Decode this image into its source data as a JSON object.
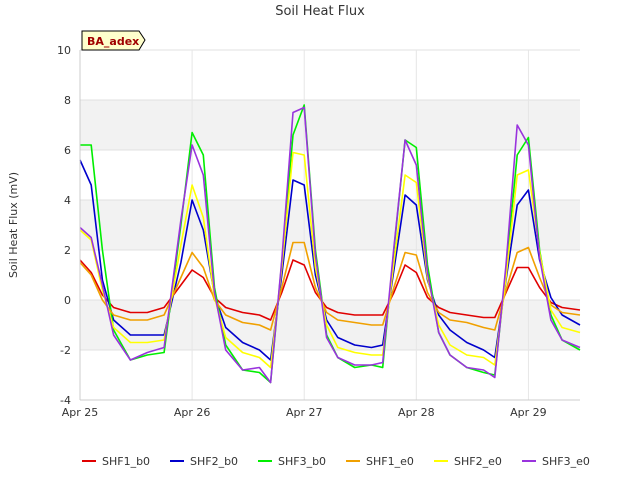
{
  "chart_data": {
    "type": "line",
    "title": "Soil Heat Flux",
    "xlabel": "",
    "ylabel": "Soil Heat Flux (mV)",
    "badge": "BA_adex",
    "ylim": [
      -4,
      10
    ],
    "yticks": [
      -4,
      -2,
      0,
      2,
      4,
      6,
      8,
      10
    ],
    "xlim": [
      0,
      4.46
    ],
    "xticks": [
      {
        "value": 0,
        "label": "Apr 25"
      },
      {
        "value": 1,
        "label": "Apr 26"
      },
      {
        "value": 2,
        "label": "Apr 27"
      },
      {
        "value": 3,
        "label": "Apr 28"
      },
      {
        "value": 4,
        "label": "Apr 29"
      }
    ],
    "grid": "horizontal bands",
    "legend_position": "bottom",
    "x": [
      0.0,
      0.1,
      0.2,
      0.3,
      0.45,
      0.6,
      0.75,
      0.9,
      1.0,
      1.1,
      1.2,
      1.3,
      1.45,
      1.6,
      1.7,
      1.8,
      1.9,
      2.0,
      2.1,
      2.2,
      2.3,
      2.45,
      2.6,
      2.7,
      2.8,
      2.9,
      3.0,
      3.1,
      3.2,
      3.3,
      3.45,
      3.6,
      3.7,
      3.8,
      3.9,
      4.0,
      4.1,
      4.2,
      4.3,
      4.46
    ],
    "series": [
      {
        "name": "SHF1_b0",
        "color": "#e00000",
        "values": [
          1.6,
          1.1,
          0.2,
          -0.3,
          -0.5,
          -0.5,
          -0.3,
          0.6,
          1.2,
          0.9,
          0.1,
          -0.3,
          -0.5,
          -0.6,
          -0.8,
          0.3,
          1.6,
          1.4,
          0.3,
          -0.3,
          -0.5,
          -0.6,
          -0.6,
          -0.6,
          0.3,
          1.4,
          1.1,
          0.1,
          -0.3,
          -0.5,
          -0.6,
          -0.7,
          -0.7,
          0.3,
          1.3,
          1.3,
          0.5,
          -0.1,
          -0.3,
          -0.4
        ]
      },
      {
        "name": "SHF2_b0",
        "color": "#0000cc",
        "values": [
          5.6,
          4.6,
          0.8,
          -0.8,
          -1.4,
          -1.4,
          -1.4,
          1.5,
          4.0,
          2.8,
          0.2,
          -1.1,
          -1.7,
          -2.0,
          -2.4,
          1.0,
          4.8,
          4.6,
          1.0,
          -0.8,
          -1.5,
          -1.8,
          -1.9,
          -1.8,
          1.2,
          4.2,
          3.8,
          0.8,
          -0.6,
          -1.2,
          -1.7,
          -2.0,
          -2.3,
          0.8,
          3.8,
          4.4,
          1.6,
          0.1,
          -0.6,
          -1.0
        ]
      },
      {
        "name": "SHF3_b0",
        "color": "#00ee00",
        "values": [
          6.2,
          6.2,
          2.0,
          -1.2,
          -2.4,
          -2.2,
          -2.1,
          3.0,
          6.7,
          5.8,
          0.5,
          -1.8,
          -2.8,
          -2.9,
          -3.3,
          1.5,
          6.6,
          7.8,
          2.0,
          -1.4,
          -2.3,
          -2.7,
          -2.6,
          -2.7,
          2.0,
          6.4,
          6.1,
          1.4,
          -1.3,
          -2.2,
          -2.7,
          -2.9,
          -3.0,
          1.2,
          5.8,
          6.5,
          2.0,
          -0.6,
          -1.6,
          -2.0
        ]
      },
      {
        "name": "SHF1_e0",
        "color": "#f0a000",
        "values": [
          1.5,
          1.0,
          0.0,
          -0.6,
          -0.8,
          -0.8,
          -0.6,
          0.9,
          1.9,
          1.3,
          0.0,
          -0.6,
          -0.9,
          -1.0,
          -1.2,
          0.5,
          2.3,
          2.3,
          0.5,
          -0.5,
          -0.8,
          -0.9,
          -1.0,
          -1.0,
          0.5,
          1.9,
          1.8,
          0.3,
          -0.5,
          -0.8,
          -0.9,
          -1.1,
          -1.2,
          0.4,
          1.9,
          2.1,
          0.9,
          -0.2,
          -0.5,
          -0.6
        ]
      },
      {
        "name": "SHF2_e0",
        "color": "#ffff00",
        "values": [
          2.8,
          2.4,
          0.4,
          -1.1,
          -1.7,
          -1.7,
          -1.6,
          2.2,
          4.6,
          3.3,
          0.1,
          -1.5,
          -2.1,
          -2.3,
          -2.7,
          1.3,
          5.9,
          5.8,
          1.3,
          -1.0,
          -1.9,
          -2.1,
          -2.2,
          -2.2,
          1.5,
          5.0,
          4.7,
          0.9,
          -1.0,
          -1.8,
          -2.2,
          -2.3,
          -2.6,
          0.9,
          5.0,
          5.2,
          1.9,
          -0.4,
          -1.1,
          -1.3
        ]
      },
      {
        "name": "SHF3_e0",
        "color": "#9933dd",
        "values": [
          2.9,
          2.5,
          0.6,
          -1.4,
          -2.4,
          -2.1,
          -1.9,
          3.2,
          6.2,
          5.0,
          0.3,
          -2.0,
          -2.8,
          -2.7,
          -3.3,
          1.6,
          7.5,
          7.7,
          1.8,
          -1.5,
          -2.3,
          -2.6,
          -2.6,
          -2.5,
          2.1,
          6.4,
          5.4,
          1.1,
          -1.3,
          -2.2,
          -2.7,
          -2.8,
          -3.1,
          1.4,
          7.0,
          6.2,
          1.7,
          -0.8,
          -1.6,
          -1.9
        ]
      }
    ]
  }
}
